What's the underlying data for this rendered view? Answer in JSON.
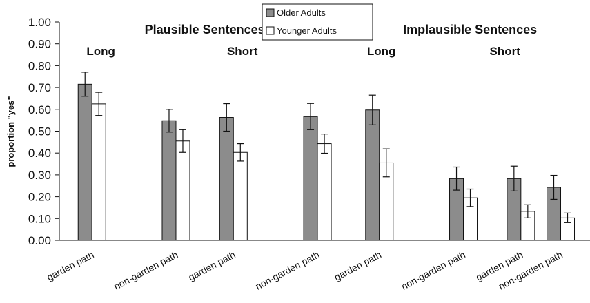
{
  "chart_data": {
    "type": "bar",
    "ylabel": "proportion \"yes\"",
    "ylim": [
      0,
      1
    ],
    "yticks": [
      "0.00",
      "0.10",
      "0.20",
      "0.30",
      "0.40",
      "0.50",
      "0.60",
      "0.70",
      "0.80",
      "0.90",
      "1.00"
    ],
    "grid": false,
    "legend_position": "top-center",
    "colors": {
      "older": "#8c8c8c",
      "younger": "#ffffff",
      "stroke": "#111111"
    },
    "group_labels": [
      "Plausible Sentences",
      "Implausible Sentences"
    ],
    "sub_labels": [
      "Long",
      "Short",
      "Long",
      "Short"
    ],
    "categories": [
      "garden path",
      "non-garden path",
      "garden path",
      "non-garden path",
      "garden path",
      "non-garden path",
      "garden path",
      "non-garden path"
    ],
    "series": [
      {
        "name": "Older Adults",
        "values": [
          0.715,
          0.548,
          0.563,
          0.567,
          0.597,
          0.283,
          0.283,
          0.243
        ],
        "error": [
          0.055,
          0.052,
          0.063,
          0.06,
          0.068,
          0.053,
          0.057,
          0.055
        ]
      },
      {
        "name": "Younger Adults",
        "values": [
          0.625,
          0.455,
          0.403,
          0.443,
          0.355,
          0.195,
          0.133,
          0.103
        ],
        "error": [
          0.053,
          0.052,
          0.04,
          0.044,
          0.064,
          0.04,
          0.03,
          0.022
        ]
      }
    ]
  }
}
